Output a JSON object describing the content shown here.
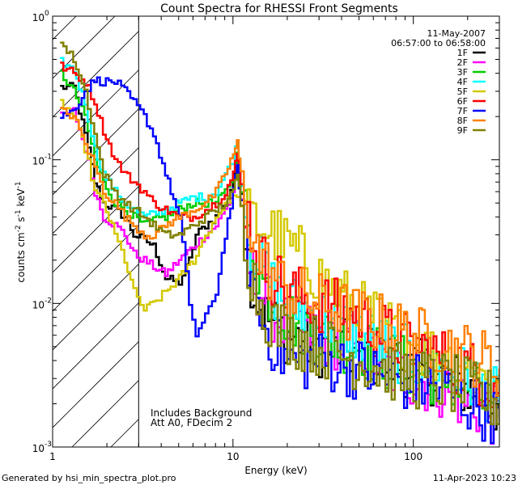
{
  "chart_data": {
    "type": "line",
    "title": "Count Spectra for RHESSI Front Segments",
    "xlabel": "Energy (keV)",
    "ylabel_main": "counts cm",
    "ylabel_exp1": "-2",
    "ylabel_mid": " s",
    "ylabel_exp2": "-1",
    "ylabel_tail": " keV",
    "ylabel_exp3": "-1",
    "xscale": "log",
    "yscale": "log",
    "xlim": [
      1,
      300
    ],
    "ylim": [
      0.001,
      1
    ],
    "x_tick_labels": [
      {
        "value": 1,
        "label": "1"
      },
      {
        "value": 10,
        "label": "10"
      },
      {
        "value": 100,
        "label": "100"
      }
    ],
    "y_tick_labels": [
      {
        "value": 1,
        "base": "10",
        "exp": "0"
      },
      {
        "value": 0.1,
        "base": "10",
        "exp": "-1"
      },
      {
        "value": 0.01,
        "base": "10",
        "exp": "-2"
      },
      {
        "value": 0.001,
        "base": "10",
        "exp": "-3"
      }
    ],
    "date": "11-May-2007",
    "time_range": "06:57:00 to 06:58:00",
    "annotation_lines": [
      "Includes Background",
      "Att A0, FDecim 2"
    ],
    "shaded_region_max_energy": 3,
    "legend_position": "top-right",
    "series": [
      {
        "name": "1F",
        "color": "#000000",
        "points": [
          [
            1.1,
            0.32
          ],
          [
            1.3,
            0.32
          ],
          [
            1.5,
            0.15
          ],
          [
            1.7,
            0.07
          ],
          [
            1.9,
            0.05
          ],
          [
            2.2,
            0.045
          ],
          [
            2.5,
            0.04
          ],
          [
            2.8,
            0.03
          ],
          [
            3.2,
            0.028
          ],
          [
            3.6,
            0.025
          ],
          [
            4.2,
            0.015
          ],
          [
            5,
            0.014
          ],
          [
            5.7,
            0.02
          ],
          [
            6.2,
            0.03
          ],
          [
            7,
            0.035
          ],
          [
            8,
            0.04
          ],
          [
            9,
            0.05
          ],
          [
            10,
            0.07
          ],
          [
            10.5,
            0.1
          ],
          [
            11,
            0.06
          ],
          [
            12,
            0.02
          ],
          [
            13,
            0.012
          ],
          [
            15,
            0.008
          ],
          [
            20,
            0.006
          ],
          [
            30,
            0.005
          ],
          [
            50,
            0.0045
          ],
          [
            70,
            0.004
          ],
          [
            100,
            0.0035
          ],
          [
            150,
            0.003
          ],
          [
            200,
            0.0025
          ],
          [
            250,
            0.0022
          ],
          [
            300,
            0.0018
          ]
        ]
      },
      {
        "name": "2F",
        "color": "#ff00ff",
        "points": [
          [
            1.1,
            0.2
          ],
          [
            1.3,
            0.22
          ],
          [
            1.5,
            0.12
          ],
          [
            1.7,
            0.06
          ],
          [
            1.9,
            0.04
          ],
          [
            2.2,
            0.035
          ],
          [
            2.5,
            0.03
          ],
          [
            2.8,
            0.022
          ],
          [
            3.2,
            0.02
          ],
          [
            3.6,
            0.018
          ],
          [
            4.2,
            0.016
          ],
          [
            5,
            0.02
          ],
          [
            6,
            0.025
          ],
          [
            7,
            0.03
          ],
          [
            8,
            0.035
          ],
          [
            9,
            0.045
          ],
          [
            10,
            0.06
          ],
          [
            10.5,
            0.09
          ],
          [
            11,
            0.05
          ],
          [
            12,
            0.018
          ],
          [
            14,
            0.012
          ],
          [
            17,
            0.008
          ],
          [
            20,
            0.007
          ],
          [
            30,
            0.006
          ],
          [
            50,
            0.005
          ],
          [
            70,
            0.0035
          ],
          [
            100,
            0.003
          ],
          [
            150,
            0.0025
          ],
          [
            200,
            0.002
          ],
          [
            250,
            0.0018
          ],
          [
            300,
            0.0015
          ]
        ]
      },
      {
        "name": "3F",
        "color": "#00cc00",
        "points": [
          [
            1.1,
            0.4
          ],
          [
            1.3,
            0.3
          ],
          [
            1.5,
            0.2
          ],
          [
            1.7,
            0.1
          ],
          [
            1.9,
            0.07
          ],
          [
            2.2,
            0.05
          ],
          [
            2.5,
            0.045
          ],
          [
            2.8,
            0.04
          ],
          [
            3.2,
            0.035
          ],
          [
            3.6,
            0.038
          ],
          [
            4.2,
            0.04
          ],
          [
            5,
            0.045
          ],
          [
            6,
            0.05
          ],
          [
            7,
            0.05
          ],
          [
            8,
            0.05
          ],
          [
            9,
            0.06
          ],
          [
            10,
            0.08
          ],
          [
            10.5,
            0.12
          ],
          [
            11,
            0.06
          ],
          [
            12,
            0.03
          ],
          [
            14,
            0.015
          ],
          [
            17,
            0.01
          ],
          [
            20,
            0.008
          ],
          [
            30,
            0.006
          ],
          [
            50,
            0.005
          ],
          [
            70,
            0.004
          ],
          [
            100,
            0.0035
          ],
          [
            150,
            0.003
          ],
          [
            200,
            0.0025
          ],
          [
            250,
            0.002
          ],
          [
            300,
            0.0018
          ]
        ]
      },
      {
        "name": "4F",
        "color": "#00ffff",
        "points": [
          [
            1.1,
            0.48
          ],
          [
            1.3,
            0.42
          ],
          [
            1.5,
            0.25
          ],
          [
            1.7,
            0.12
          ],
          [
            1.9,
            0.08
          ],
          [
            2.2,
            0.06
          ],
          [
            2.5,
            0.05
          ],
          [
            2.8,
            0.045
          ],
          [
            3.2,
            0.04
          ],
          [
            3.6,
            0.042
          ],
          [
            4.2,
            0.045
          ],
          [
            5,
            0.05
          ],
          [
            6,
            0.055
          ],
          [
            7,
            0.055
          ],
          [
            8,
            0.06
          ],
          [
            9,
            0.08
          ],
          [
            10,
            0.1
          ],
          [
            10.5,
            0.14
          ],
          [
            11,
            0.07
          ],
          [
            12,
            0.03
          ],
          [
            14,
            0.018
          ],
          [
            17,
            0.012
          ],
          [
            20,
            0.01
          ],
          [
            30,
            0.008
          ],
          [
            50,
            0.006
          ],
          [
            70,
            0.005
          ],
          [
            100,
            0.004
          ],
          [
            150,
            0.0035
          ],
          [
            200,
            0.003
          ],
          [
            250,
            0.0025
          ],
          [
            300,
            0.002
          ]
        ]
      },
      {
        "name": "5F",
        "color": "#d4c800",
        "points": [
          [
            1.1,
            0.25
          ],
          [
            1.3,
            0.2
          ],
          [
            1.5,
            0.12
          ],
          [
            1.7,
            0.06
          ],
          [
            1.9,
            0.05
          ],
          [
            2.2,
            0.03
          ],
          [
            2.5,
            0.02
          ],
          [
            2.8,
            0.012
          ],
          [
            3.2,
            0.009
          ],
          [
            3.6,
            0.01
          ],
          [
            4.2,
            0.012
          ],
          [
            5,
            0.015
          ],
          [
            6,
            0.02
          ],
          [
            7,
            0.03
          ],
          [
            8,
            0.04
          ],
          [
            9,
            0.05
          ],
          [
            10,
            0.055
          ],
          [
            11,
            0.05
          ],
          [
            12,
            0.04
          ],
          [
            14,
            0.035
          ],
          [
            17,
            0.03
          ],
          [
            20,
            0.025
          ],
          [
            25,
            0.02
          ],
          [
            30,
            0.015
          ],
          [
            40,
            0.011
          ],
          [
            50,
            0.009
          ],
          [
            70,
            0.007
          ],
          [
            100,
            0.005
          ],
          [
            150,
            0.004
          ],
          [
            200,
            0.0035
          ],
          [
            250,
            0.003
          ],
          [
            300,
            0.0025
          ]
        ]
      },
      {
        "name": "6F",
        "color": "#ff0000",
        "points": [
          [
            1.1,
            0.45
          ],
          [
            1.3,
            0.4
          ],
          [
            1.5,
            0.35
          ],
          [
            1.7,
            0.25
          ],
          [
            1.9,
            0.16
          ],
          [
            2.2,
            0.1
          ],
          [
            2.5,
            0.08
          ],
          [
            2.8,
            0.07
          ],
          [
            3.2,
            0.06
          ],
          [
            3.6,
            0.05
          ],
          [
            4.2,
            0.045
          ],
          [
            5,
            0.04
          ],
          [
            6,
            0.04
          ],
          [
            7,
            0.045
          ],
          [
            8,
            0.05
          ],
          [
            9,
            0.06
          ],
          [
            10,
            0.08
          ],
          [
            10.5,
            0.11
          ],
          [
            11,
            0.07
          ],
          [
            12,
            0.04
          ],
          [
            14,
            0.02
          ],
          [
            17,
            0.015
          ],
          [
            20,
            0.012
          ],
          [
            30,
            0.01
          ],
          [
            50,
            0.008
          ],
          [
            70,
            0.006
          ],
          [
            100,
            0.005
          ],
          [
            150,
            0.004
          ],
          [
            200,
            0.0035
          ],
          [
            250,
            0.003
          ],
          [
            300,
            0.0025
          ]
        ]
      },
      {
        "name": "7F",
        "color": "#0000ff",
        "points": [
          [
            1.1,
            0.2
          ],
          [
            1.3,
            0.22
          ],
          [
            1.5,
            0.3
          ],
          [
            1.7,
            0.36
          ],
          [
            1.9,
            0.35
          ],
          [
            2.2,
            0.35
          ],
          [
            2.5,
            0.3
          ],
          [
            2.8,
            0.25
          ],
          [
            3.2,
            0.2
          ],
          [
            3.6,
            0.15
          ],
          [
            4.2,
            0.08
          ],
          [
            5,
            0.04
          ],
          [
            5.7,
            0.01
          ],
          [
            6.2,
            0.006
          ],
          [
            7,
            0.008
          ],
          [
            8,
            0.012
          ],
          [
            9,
            0.03
          ],
          [
            10,
            0.06
          ],
          [
            10.5,
            0.09
          ],
          [
            11,
            0.05
          ],
          [
            12,
            0.02
          ],
          [
            14,
            0.008
          ],
          [
            17,
            0.005
          ],
          [
            20,
            0.004
          ],
          [
            30,
            0.004
          ],
          [
            50,
            0.0035
          ],
          [
            70,
            0.003
          ],
          [
            100,
            0.0028
          ],
          [
            150,
            0.0025
          ],
          [
            200,
            0.002
          ],
          [
            250,
            0.0018
          ],
          [
            300,
            0.0016
          ]
        ]
      },
      {
        "name": "8F",
        "color": "#ff8000",
        "points": [
          [
            1.1,
            0.22
          ],
          [
            1.3,
            0.2
          ],
          [
            1.5,
            0.13
          ],
          [
            1.7,
            0.09
          ],
          [
            1.9,
            0.06
          ],
          [
            2.2,
            0.05
          ],
          [
            2.5,
            0.04
          ],
          [
            2.8,
            0.035
          ],
          [
            3.2,
            0.03
          ],
          [
            3.6,
            0.03
          ],
          [
            4.2,
            0.035
          ],
          [
            5,
            0.04
          ],
          [
            6,
            0.045
          ],
          [
            7,
            0.05
          ],
          [
            8,
            0.06
          ],
          [
            9,
            0.08
          ],
          [
            10,
            0.11
          ],
          [
            10.5,
            0.13
          ],
          [
            11,
            0.08
          ],
          [
            12,
            0.04
          ],
          [
            14,
            0.02
          ],
          [
            17,
            0.015
          ],
          [
            20,
            0.012
          ],
          [
            30,
            0.01
          ],
          [
            50,
            0.008
          ],
          [
            70,
            0.007
          ],
          [
            100,
            0.006
          ],
          [
            150,
            0.005
          ],
          [
            200,
            0.0045
          ],
          [
            250,
            0.004
          ],
          [
            300,
            0.0035
          ]
        ]
      },
      {
        "name": "9F",
        "color": "#808000",
        "points": [
          [
            1.1,
            0.65
          ],
          [
            1.3,
            0.5
          ],
          [
            1.5,
            0.3
          ],
          [
            1.7,
            0.15
          ],
          [
            1.9,
            0.08
          ],
          [
            2.2,
            0.06
          ],
          [
            2.5,
            0.05
          ],
          [
            2.8,
            0.045
          ],
          [
            3.2,
            0.04
          ],
          [
            3.6,
            0.035
          ],
          [
            4.2,
            0.03
          ],
          [
            5,
            0.03
          ],
          [
            6,
            0.035
          ],
          [
            7,
            0.04
          ],
          [
            8,
            0.045
          ],
          [
            9,
            0.05
          ],
          [
            10,
            0.06
          ],
          [
            10.5,
            0.08
          ],
          [
            11,
            0.05
          ],
          [
            12,
            0.02
          ],
          [
            14,
            0.01
          ],
          [
            17,
            0.007
          ],
          [
            20,
            0.006
          ],
          [
            30,
            0.005
          ],
          [
            50,
            0.004
          ],
          [
            70,
            0.0035
          ],
          [
            100,
            0.003
          ],
          [
            150,
            0.0028
          ],
          [
            200,
            0.0025
          ],
          [
            250,
            0.0022
          ],
          [
            300,
            0.002
          ]
        ]
      }
    ]
  },
  "footer": {
    "left": "Generated by hsi_min_spectra_plot.pro",
    "right": "11-Apr-2023 10:23"
  }
}
